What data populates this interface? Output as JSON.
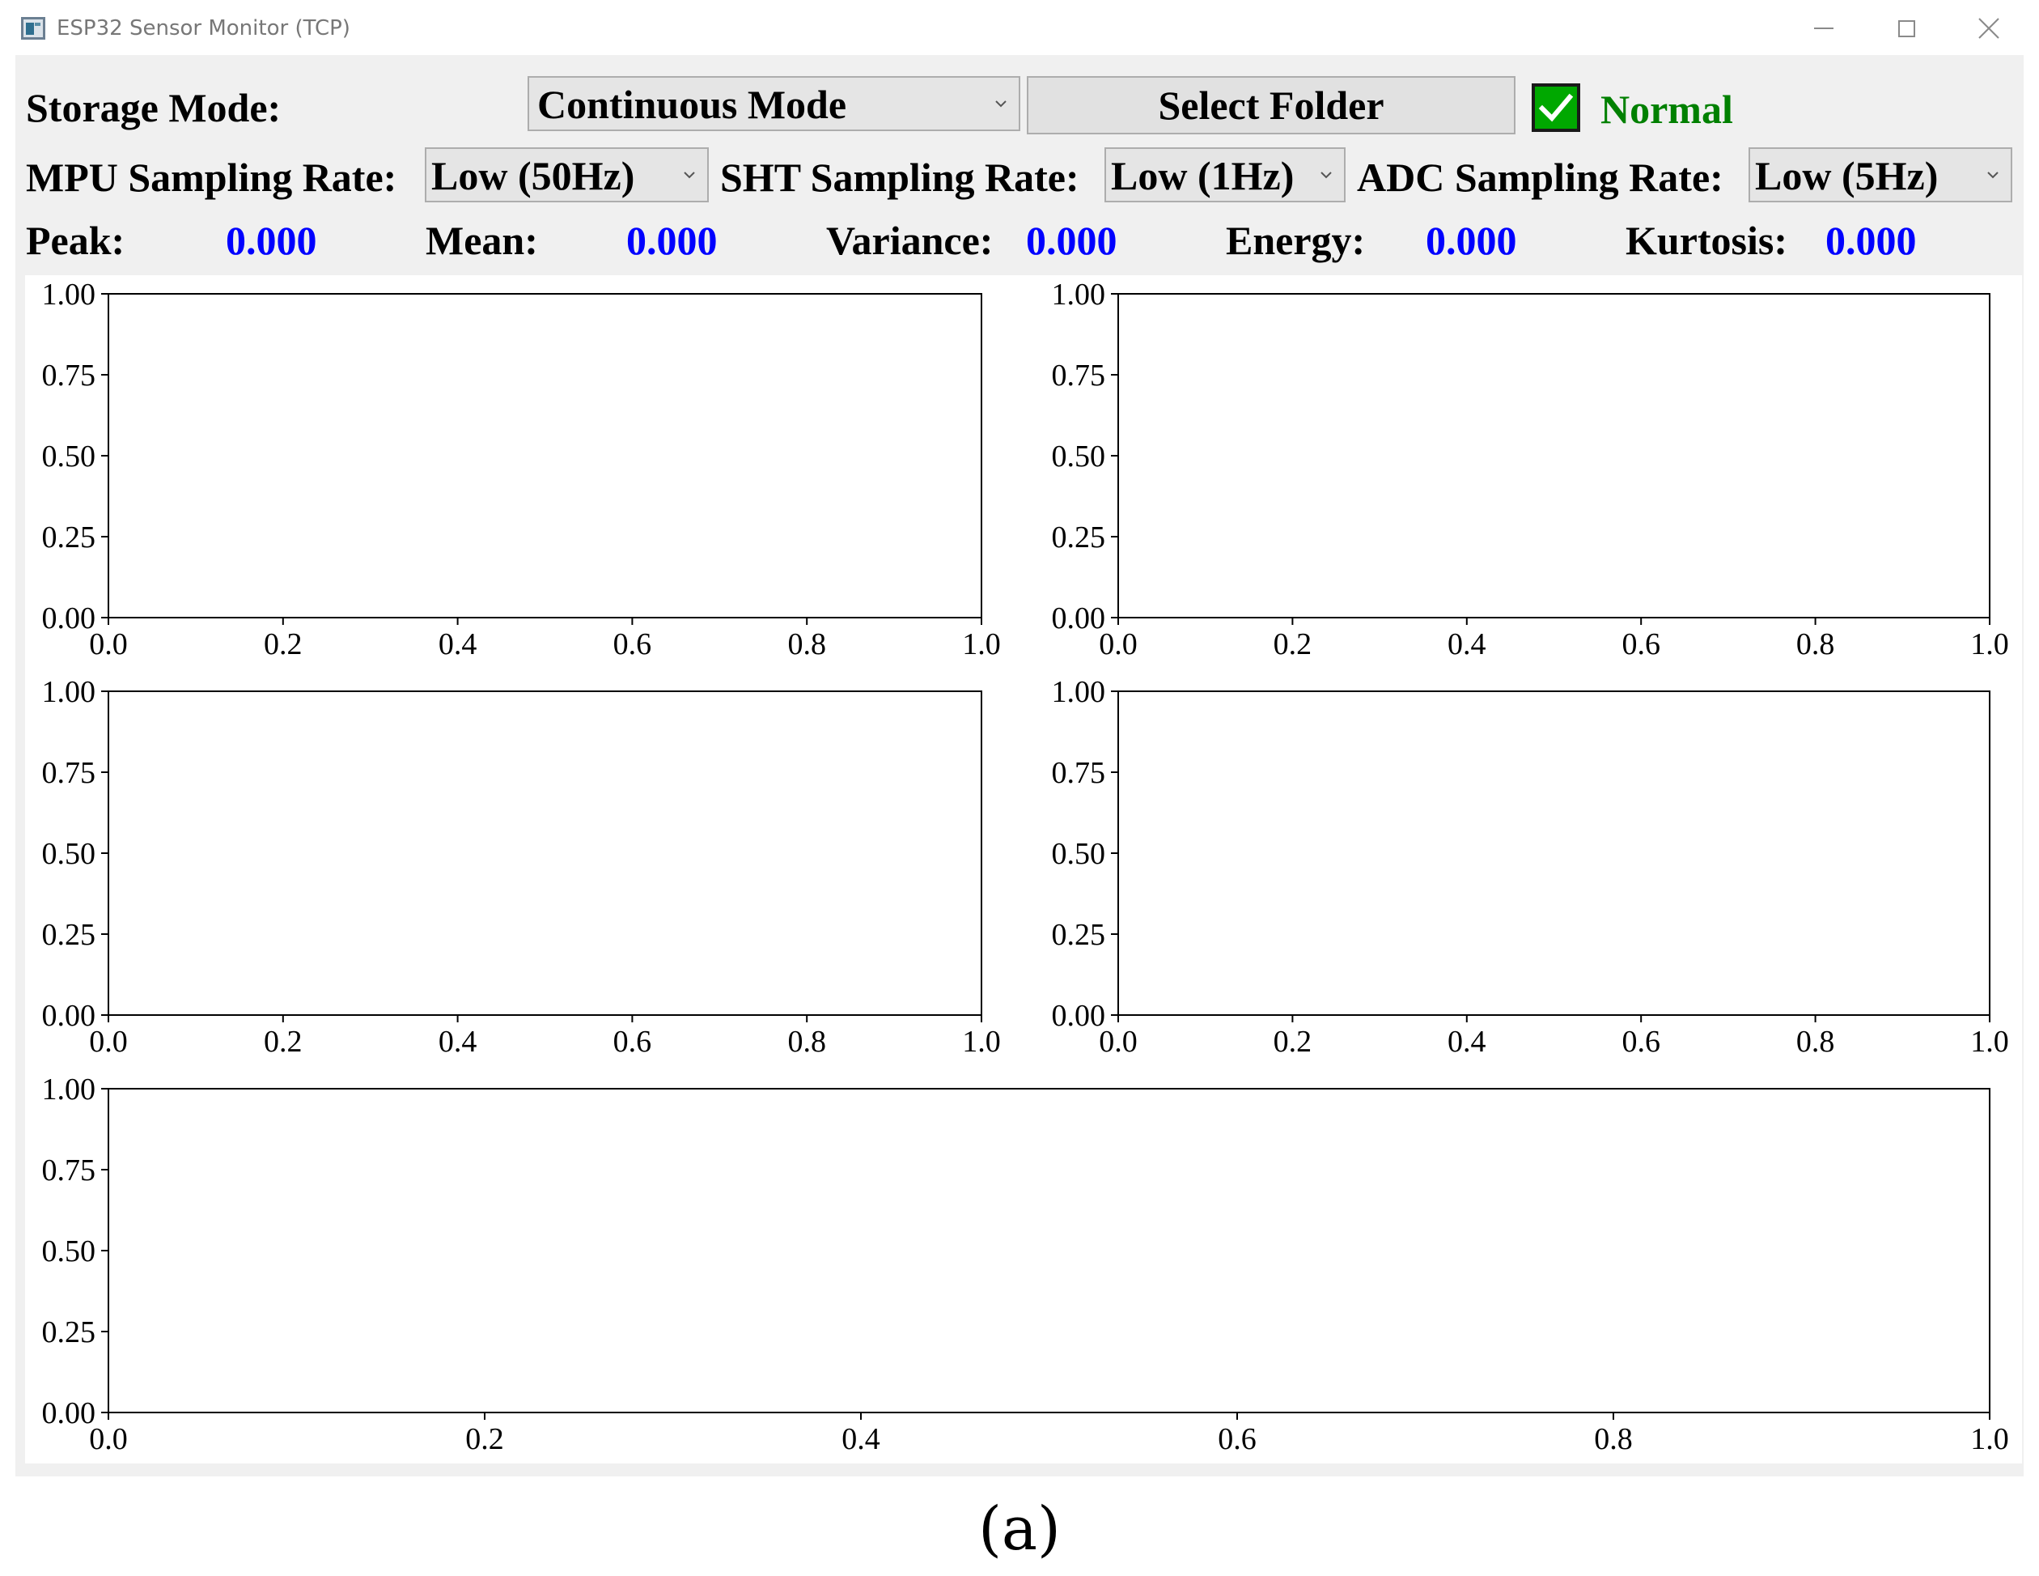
{
  "window": {
    "title": "ESP32 Sensor Monitor (TCP)",
    "controls": [
      "minimize-icon",
      "maximize-icon",
      "close-icon"
    ]
  },
  "controls": {
    "storage_mode_label": "Storage Mode:",
    "storage_mode_value": "Continuous Mode",
    "select_folder_label": "Select Folder",
    "status_checked": true,
    "status_label": "Normal",
    "mpu_label": "MPU Sampling Rate:",
    "mpu_value": "Low (50Hz)",
    "sht_label": "SHT Sampling Rate:",
    "sht_value": "Low (1Hz)",
    "adc_label": "ADC Sampling Rate:",
    "adc_value": "Low (5Hz)"
  },
  "stats": [
    {
      "label": "Peak:",
      "value": "0.000"
    },
    {
      "label": "Mean:",
      "value": "0.000"
    },
    {
      "label": "Variance:",
      "value": "0.000"
    },
    {
      "label": "Energy:",
      "value": "0.000"
    },
    {
      "label": "Kurtosis:",
      "value": "0.000"
    }
  ],
  "colors": {
    "value_text": "#0000ff",
    "status_text": "#008000",
    "checkbox_fill": "#00a800",
    "panel_bg": "#f0f0f0"
  },
  "chart_data": [
    {
      "type": "line",
      "title": "",
      "xlabel": "",
      "ylabel": "",
      "xlim": [
        0.0,
        1.0
      ],
      "ylim": [
        0.0,
        1.0
      ],
      "x_ticks": [
        "0.0",
        "0.2",
        "0.4",
        "0.6",
        "0.8",
        "1.0"
      ],
      "y_ticks": [
        "0.00",
        "0.25",
        "0.50",
        "0.75",
        "1.00"
      ],
      "series": [],
      "grid": false
    },
    {
      "type": "line",
      "title": "",
      "xlabel": "",
      "ylabel": "",
      "xlim": [
        0.0,
        1.0
      ],
      "ylim": [
        0.0,
        1.0
      ],
      "x_ticks": [
        "0.0",
        "0.2",
        "0.4",
        "0.6",
        "0.8",
        "1.0"
      ],
      "y_ticks": [
        "0.00",
        "0.25",
        "0.50",
        "0.75",
        "1.00"
      ],
      "series": [],
      "grid": false
    },
    {
      "type": "line",
      "title": "",
      "xlabel": "",
      "ylabel": "",
      "xlim": [
        0.0,
        1.0
      ],
      "ylim": [
        0.0,
        1.0
      ],
      "x_ticks": [
        "0.0",
        "0.2",
        "0.4",
        "0.6",
        "0.8",
        "1.0"
      ],
      "y_ticks": [
        "0.00",
        "0.25",
        "0.50",
        "0.75",
        "1.00"
      ],
      "series": [],
      "grid": false
    },
    {
      "type": "line",
      "title": "",
      "xlabel": "",
      "ylabel": "",
      "xlim": [
        0.0,
        1.0
      ],
      "ylim": [
        0.0,
        1.0
      ],
      "x_ticks": [
        "0.0",
        "0.2",
        "0.4",
        "0.6",
        "0.8",
        "1.0"
      ],
      "y_ticks": [
        "0.00",
        "0.25",
        "0.50",
        "0.75",
        "1.00"
      ],
      "series": [],
      "grid": false
    },
    {
      "type": "line",
      "title": "",
      "xlabel": "",
      "ylabel": "",
      "xlim": [
        0.0,
        1.0
      ],
      "ylim": [
        0.0,
        1.0
      ],
      "x_ticks": [
        "0.0",
        "0.2",
        "0.4",
        "0.6",
        "0.8",
        "1.0"
      ],
      "y_ticks": [
        "0.00",
        "0.25",
        "0.50",
        "0.75",
        "1.00"
      ],
      "series": [],
      "grid": false
    }
  ],
  "caption": "(a)"
}
